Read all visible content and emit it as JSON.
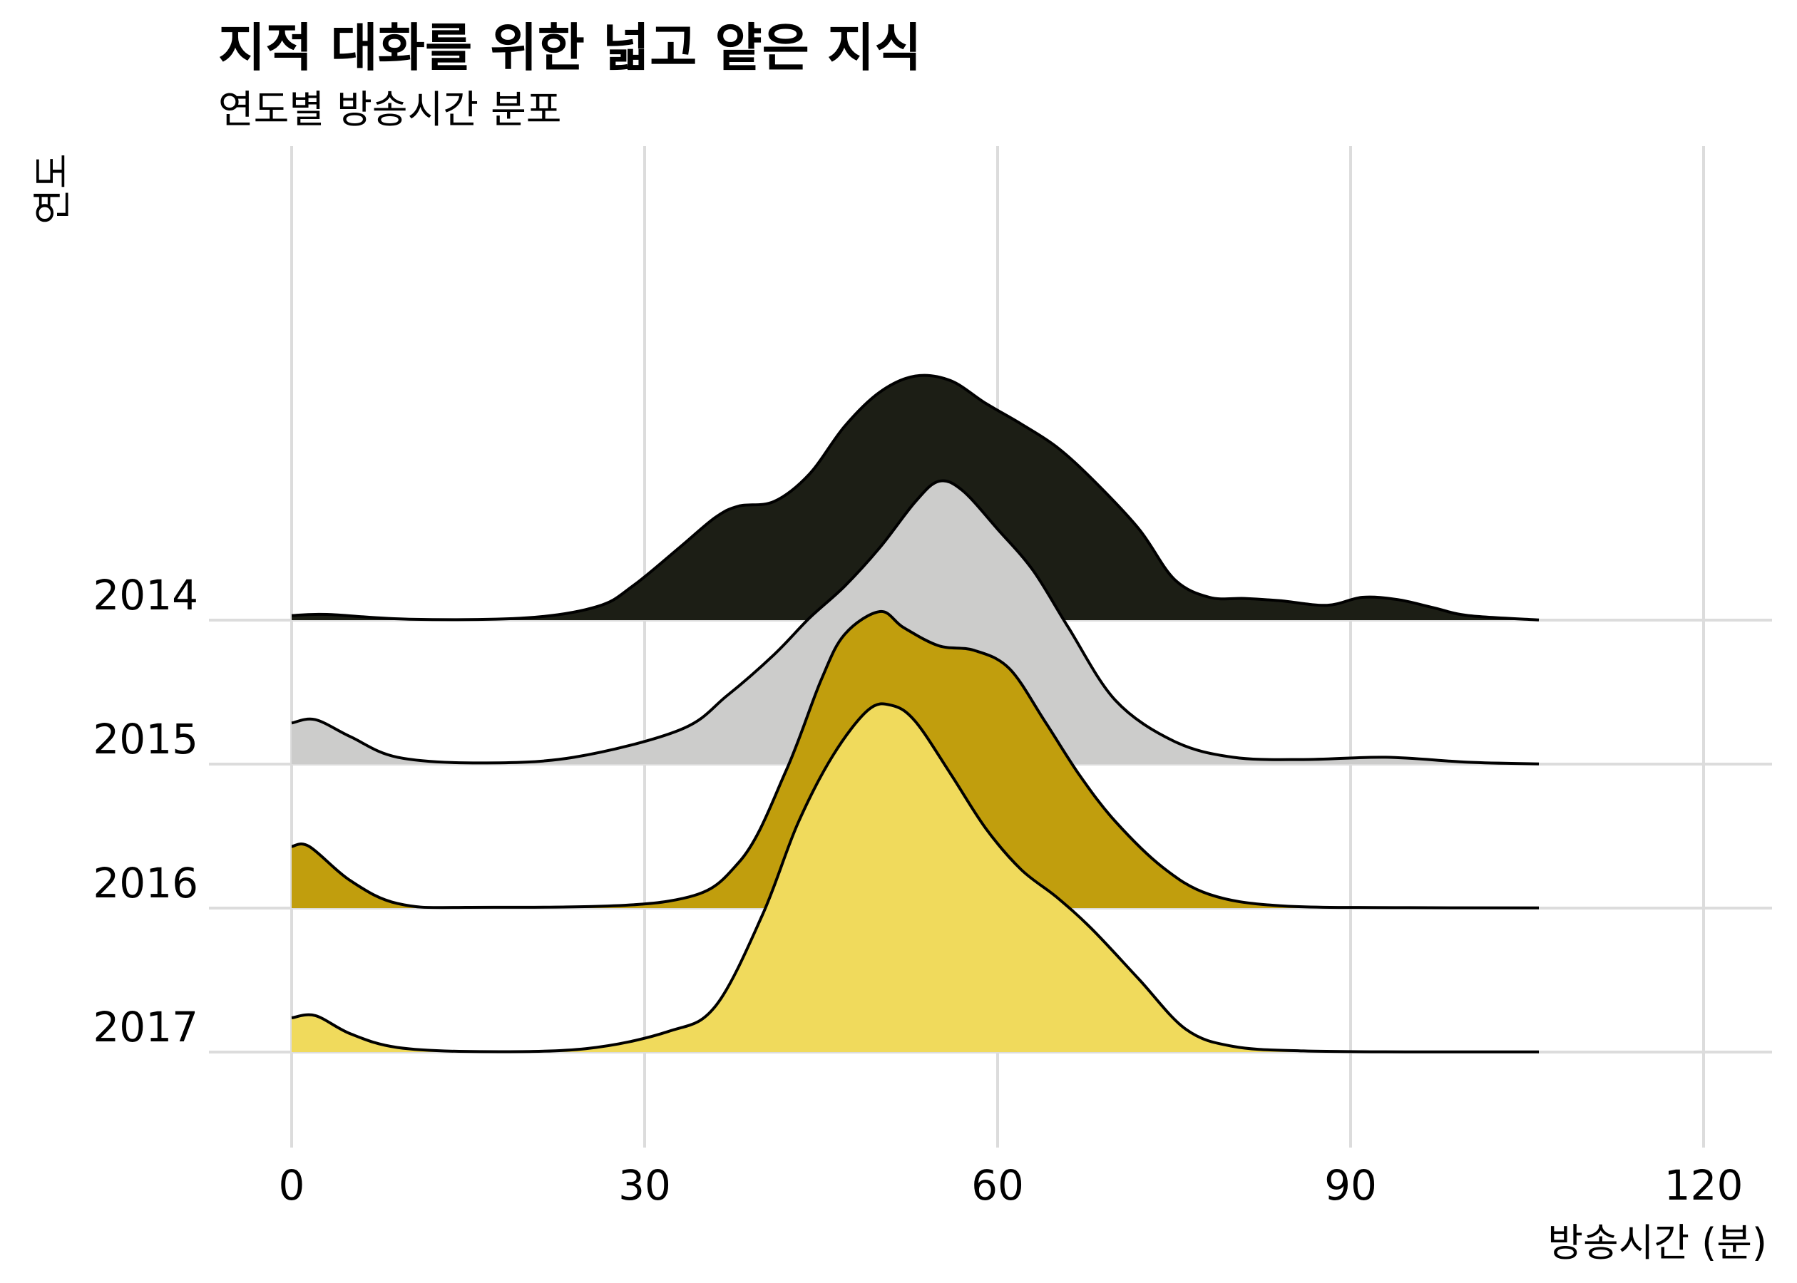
{
  "chart_data": {
    "type": "ridgeline",
    "title": "지적 대화를 위한 넓고 얕은 지식",
    "subtitle": "연도별 방송시간 분포",
    "xlabel": "방송시간 (분)",
    "ylabel": "연도",
    "xlim": [
      -7,
      127
    ],
    "x_ticks": [
      0,
      30,
      60,
      90,
      120
    ],
    "x_tick_labels": [
      "0",
      "30",
      "60",
      "90",
      "120"
    ],
    "grid": true,
    "series": [
      {
        "name": "2014",
        "color": "#1c1e15",
        "density": [
          [
            0,
            0.02
          ],
          [
            3,
            0.025
          ],
          [
            10,
            0.004
          ],
          [
            20,
            0.01
          ],
          [
            26,
            0.06
          ],
          [
            29,
            0.15
          ],
          [
            33,
            0.32
          ],
          [
            36,
            0.45
          ],
          [
            38,
            0.5
          ],
          [
            41,
            0.52
          ],
          [
            44,
            0.64
          ],
          [
            47,
            0.85
          ],
          [
            50,
            1.0
          ],
          [
            53,
            1.07
          ],
          [
            56,
            1.05
          ],
          [
            59,
            0.95
          ],
          [
            62,
            0.86
          ],
          [
            65,
            0.76
          ],
          [
            68,
            0.62
          ],
          [
            72,
            0.4
          ],
          [
            75,
            0.18
          ],
          [
            78,
            0.1
          ],
          [
            81,
            0.095
          ],
          [
            84,
            0.085
          ],
          [
            88,
            0.065
          ],
          [
            91,
            0.1
          ],
          [
            94,
            0.09
          ],
          [
            97,
            0.055
          ],
          [
            100,
            0.02
          ],
          [
            106,
            0.001
          ]
        ]
      },
      {
        "name": "2015",
        "color": "#cccccb",
        "density": [
          [
            0,
            0.18
          ],
          [
            2,
            0.195
          ],
          [
            5,
            0.12
          ],
          [
            9,
            0.03
          ],
          [
            16,
            0.005
          ],
          [
            24,
            0.03
          ],
          [
            33,
            0.15
          ],
          [
            37,
            0.3
          ],
          [
            41,
            0.48
          ],
          [
            44,
            0.64
          ],
          [
            47,
            0.78
          ],
          [
            50,
            0.95
          ],
          [
            53,
            1.15
          ],
          [
            55,
            1.24
          ],
          [
            57,
            1.2
          ],
          [
            60,
            1.03
          ],
          [
            63,
            0.85
          ],
          [
            66,
            0.6
          ],
          [
            70,
            0.28
          ],
          [
            75,
            0.1
          ],
          [
            80,
            0.03
          ],
          [
            86,
            0.02
          ],
          [
            93,
            0.03
          ],
          [
            100,
            0.008
          ],
          [
            106,
            0.001
          ]
        ]
      },
      {
        "name": "2016",
        "color": "#c19e0d",
        "density": [
          [
            0,
            0.27
          ],
          [
            1.5,
            0.27
          ],
          [
            5,
            0.12
          ],
          [
            9,
            0.02
          ],
          [
            15,
            0.003
          ],
          [
            32,
            0.03
          ],
          [
            38,
            0.2
          ],
          [
            42,
            0.6
          ],
          [
            45,
            1.0
          ],
          [
            47,
            1.2
          ],
          [
            50,
            1.3
          ],
          [
            52,
            1.23
          ],
          [
            55,
            1.15
          ],
          [
            58,
            1.13
          ],
          [
            61,
            1.05
          ],
          [
            64,
            0.82
          ],
          [
            67,
            0.58
          ],
          [
            70,
            0.38
          ],
          [
            74,
            0.18
          ],
          [
            78,
            0.06
          ],
          [
            84,
            0.01
          ],
          [
            95,
            0.002
          ],
          [
            106,
            0.001
          ]
        ]
      },
      {
        "name": "2017",
        "color": "#f0da5c",
        "density": [
          [
            0,
            0.15
          ],
          [
            2,
            0.16
          ],
          [
            5,
            0.08
          ],
          [
            9,
            0.02
          ],
          [
            16,
            0.002
          ],
          [
            25,
            0.015
          ],
          [
            32,
            0.09
          ],
          [
            36,
            0.2
          ],
          [
            40,
            0.6
          ],
          [
            43,
            1.0
          ],
          [
            46,
            1.3
          ],
          [
            49,
            1.5
          ],
          [
            51,
            1.52
          ],
          [
            53,
            1.45
          ],
          [
            56,
            1.22
          ],
          [
            59,
            0.98
          ],
          [
            62,
            0.8
          ],
          [
            65,
            0.68
          ],
          [
            68,
            0.54
          ],
          [
            72,
            0.32
          ],
          [
            76,
            0.1
          ],
          [
            80,
            0.025
          ],
          [
            86,
            0.005
          ],
          [
            95,
            0.001
          ],
          [
            106,
            0.001
          ]
        ]
      }
    ]
  }
}
